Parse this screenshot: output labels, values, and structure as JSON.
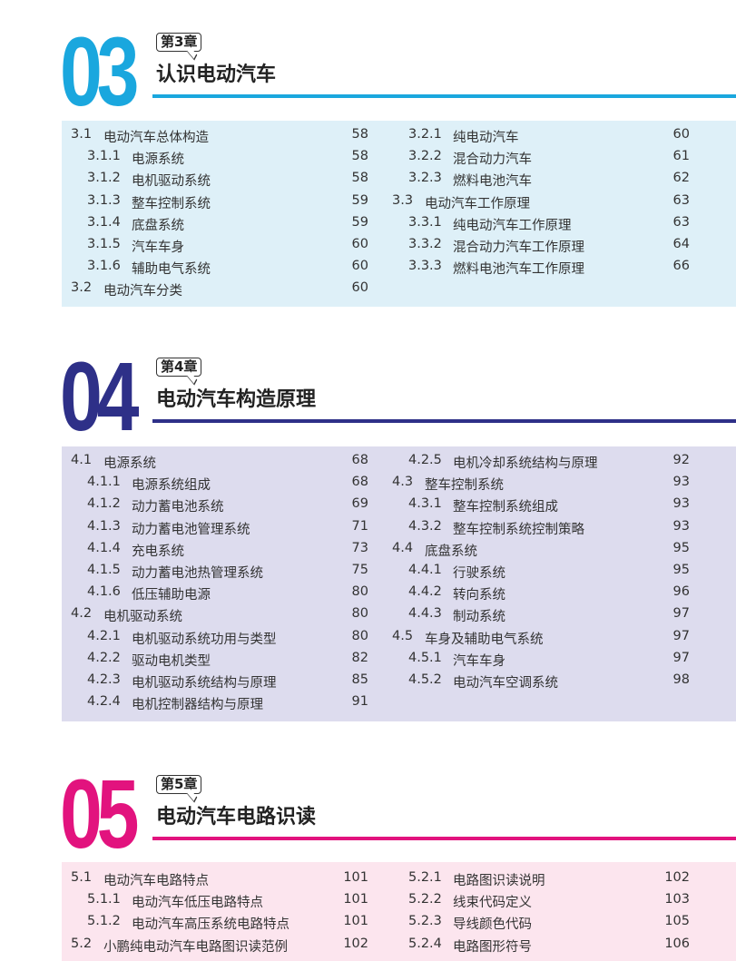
{
  "chapters": [
    {
      "number": "03",
      "badge": "第3章",
      "title": "认识电动汽车",
      "color": "#1aa7de",
      "bg": "#def0f8",
      "left": [
        {
          "num": "3.1",
          "title": "电动汽车总体构造",
          "page": "58",
          "level": 1
        },
        {
          "num": "3.1.1",
          "title": "电源系统",
          "page": "58",
          "level": 2
        },
        {
          "num": "3.1.2",
          "title": "电机驱动系统",
          "page": "58",
          "level": 2
        },
        {
          "num": "3.1.3",
          "title": "整车控制系统",
          "page": "59",
          "level": 2
        },
        {
          "num": "3.1.4",
          "title": "底盘系统",
          "page": "59",
          "level": 2
        },
        {
          "num": "3.1.5",
          "title": "汽车车身",
          "page": "60",
          "level": 2
        },
        {
          "num": "3.1.6",
          "title": "辅助电气系统",
          "page": "60",
          "level": 2
        },
        {
          "num": "3.2",
          "title": "电动汽车分类",
          "page": "60",
          "level": 1
        }
      ],
      "right": [
        {
          "num": "3.2.1",
          "title": "纯电动汽车",
          "page": "60",
          "level": 2
        },
        {
          "num": "3.2.2",
          "title": "混合动力汽车",
          "page": "61",
          "level": 2
        },
        {
          "num": "3.2.3",
          "title": "燃料电池汽车",
          "page": "62",
          "level": 2
        },
        {
          "num": "3.3",
          "title": "电动汽车工作原理",
          "page": "63",
          "level": 1
        },
        {
          "num": "3.3.1",
          "title": "纯电动汽车工作原理",
          "page": "63",
          "level": 2
        },
        {
          "num": "3.3.2",
          "title": "混合动力汽车工作原理",
          "page": "64",
          "level": 2
        },
        {
          "num": "3.3.3",
          "title": "燃料电池汽车工作原理",
          "page": "66",
          "level": 2
        }
      ]
    },
    {
      "number": "04",
      "badge": "第4章",
      "title": "电动汽车构造原理",
      "color": "#2e3088",
      "bg": "#dddcee",
      "left": [
        {
          "num": "4.1",
          "title": "电源系统",
          "page": "68",
          "level": 1
        },
        {
          "num": "4.1.1",
          "title": "电源系统组成",
          "page": "68",
          "level": 2
        },
        {
          "num": "4.1.2",
          "title": "动力蓄电池系统",
          "page": "69",
          "level": 2
        },
        {
          "num": "4.1.3",
          "title": "动力蓄电池管理系统",
          "page": "71",
          "level": 2
        },
        {
          "num": "4.1.4",
          "title": "充电系统",
          "page": "73",
          "level": 2
        },
        {
          "num": "4.1.5",
          "title": "动力蓄电池热管理系统",
          "page": "75",
          "level": 2
        },
        {
          "num": "4.1.6",
          "title": "低压辅助电源",
          "page": "80",
          "level": 2
        },
        {
          "num": "4.2",
          "title": "电机驱动系统",
          "page": "80",
          "level": 1
        },
        {
          "num": "4.2.1",
          "title": "电机驱动系统功用与类型",
          "page": "80",
          "level": 2
        },
        {
          "num": "4.2.2",
          "title": "驱动电机类型",
          "page": "82",
          "level": 2
        },
        {
          "num": "4.2.3",
          "title": "电机驱动系统结构与原理",
          "page": "85",
          "level": 2
        },
        {
          "num": "4.2.4",
          "title": "电机控制器结构与原理",
          "page": "91",
          "level": 2
        }
      ],
      "right": [
        {
          "num": "4.2.5",
          "title": "电机冷却系统结构与原理",
          "page": "92",
          "level": 2
        },
        {
          "num": "4.3",
          "title": "整车控制系统",
          "page": "93",
          "level": 1
        },
        {
          "num": "4.3.1",
          "title": "整车控制系统组成",
          "page": "93",
          "level": 2
        },
        {
          "num": "4.3.2",
          "title": "整车控制系统控制策略",
          "page": "93",
          "level": 2
        },
        {
          "num": "4.4",
          "title": "底盘系统",
          "page": "95",
          "level": 1
        },
        {
          "num": "4.4.1",
          "title": "行驶系统",
          "page": "95",
          "level": 2
        },
        {
          "num": "4.4.2",
          "title": "转向系统",
          "page": "96",
          "level": 2
        },
        {
          "num": "4.4.3",
          "title": "制动系统",
          "page": "97",
          "level": 2
        },
        {
          "num": "4.5",
          "title": "车身及辅助电气系统",
          "page": "97",
          "level": 1
        },
        {
          "num": "4.5.1",
          "title": "汽车车身",
          "page": "97",
          "level": 2
        },
        {
          "num": "4.5.2",
          "title": "电动汽车空调系统",
          "page": "98",
          "level": 2
        }
      ]
    },
    {
      "number": "05",
      "badge": "第5章",
      "title": "电动汽车电路识读",
      "color": "#e2137e",
      "bg": "#fce5ee",
      "left": [
        {
          "num": "5.1",
          "title": "电动汽车电路特点",
          "page": "101",
          "level": 1
        },
        {
          "num": "5.1.1",
          "title": "电动汽车低压电路特点",
          "page": "101",
          "level": 2
        },
        {
          "num": "5.1.2",
          "title": "电动汽车高压系统电路特点",
          "page": "101",
          "level": 2
        },
        {
          "num": "5.2",
          "title": "小鹏纯电动汽车电路图识读范例",
          "page": "102",
          "level": 1
        }
      ],
      "right": [
        {
          "num": "5.2.1",
          "title": "电路图识读说明",
          "page": "102",
          "level": 2
        },
        {
          "num": "5.2.2",
          "title": "线束代码定义",
          "page": "103",
          "level": 2
        },
        {
          "num": "5.2.3",
          "title": "导线颜色代码",
          "page": "105",
          "level": 2
        },
        {
          "num": "5.2.4",
          "title": "电路图形符号",
          "page": "106",
          "level": 2
        }
      ]
    }
  ]
}
